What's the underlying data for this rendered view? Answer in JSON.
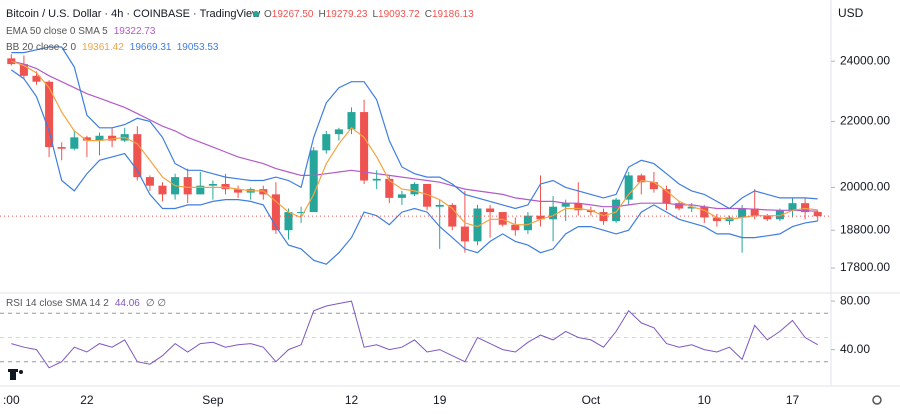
{
  "chart_data": [
    {
      "type": "candlestick",
      "title": "Bitcoin / U.S. Dollar · 4h · COINBASE · TradingView",
      "ohlc": [
        {
          "label": "O",
          "value": "19267.50"
        },
        {
          "label": "H",
          "value": "19279.23"
        },
        {
          "label": "L",
          "value": "19093.72"
        },
        {
          "label": "C",
          "value": "19186.13"
        }
      ],
      "indicator_labels": [
        {
          "text": "EMA 50 close 0 SMA 5",
          "values": [
            "19322.73"
          ],
          "colors": [
            "#b35bc8"
          ]
        },
        {
          "text": "BB 20 close 2 0",
          "values": [
            "19361.42",
            "19669.31",
            "19053.53"
          ],
          "colors": [
            "#f5a340",
            "#3f7ee0",
            "#3f7ee0"
          ]
        }
      ],
      "currency": "USD",
      "categories": [
        ":00",
        null,
        null,
        null,
        null,
        null,
        "22",
        null,
        null,
        null,
        null,
        null,
        null,
        null,
        null,
        null,
        "Sep",
        null,
        null,
        null,
        null,
        null,
        null,
        null,
        null,
        null,
        null,
        "12",
        null,
        null,
        null,
        null,
        null,
        null,
        "19",
        null,
        null,
        null,
        null,
        null,
        null,
        null,
        null,
        null,
        null,
        null,
        "Oct",
        null,
        null,
        null,
        null,
        null,
        null,
        null,
        null,
        "10",
        null,
        null,
        null,
        null,
        null,
        null,
        "17",
        null,
        null
      ],
      "open": [
        24100,
        23900,
        23500,
        23300,
        21200,
        21150,
        21500,
        21400,
        21550,
        21400,
        21600,
        20300,
        20050,
        19800,
        20300,
        19800,
        20050,
        20100,
        19950,
        19850,
        19950,
        19800,
        18800,
        19300,
        19300,
        21100,
        21600,
        21750,
        22300,
        20200,
        20250,
        19700,
        19800,
        20100,
        19450,
        19500,
        18900,
        18500,
        19400,
        19300,
        18950,
        18800,
        19200,
        19100,
        19450,
        19550,
        19350,
        19300,
        19050,
        19650,
        20350,
        20150,
        19950,
        19550,
        19400,
        19450,
        19150,
        19050,
        19150,
        19400,
        19200,
        19100,
        19350,
        19550,
        19300
      ],
      "high": [
        24250,
        24200,
        23650,
        23350,
        21350,
        21700,
        21550,
        21650,
        21800,
        21800,
        21850,
        20350,
        20150,
        20400,
        20550,
        20450,
        20200,
        20400,
        20050,
        20000,
        20050,
        20150,
        19400,
        19450,
        21200,
        21700,
        21800,
        22450,
        22700,
        20500,
        20350,
        19900,
        20150,
        20100,
        19650,
        19550,
        19900,
        19500,
        19500,
        19300,
        19150,
        19300,
        20350,
        19750,
        19650,
        20150,
        19450,
        19400,
        19700,
        20450,
        20400,
        20450,
        20050,
        19600,
        19550,
        19500,
        19250,
        19200,
        19500,
        19950,
        19250,
        19400,
        19700,
        19700,
        19350
      ],
      "low": [
        23850,
        23400,
        23200,
        20900,
        20800,
        21100,
        20900,
        20950,
        21200,
        21350,
        20200,
        19900,
        19600,
        19650,
        19550,
        19800,
        19650,
        19800,
        19700,
        19650,
        19650,
        18700,
        18550,
        19000,
        19300,
        21000,
        21400,
        21600,
        20100,
        19950,
        19550,
        19500,
        19750,
        19350,
        18300,
        18800,
        18200,
        18400,
        18600,
        18900,
        18650,
        18700,
        18900,
        18500,
        19050,
        19200,
        19200,
        18950,
        19000,
        19500,
        19800,
        19850,
        19350,
        19350,
        19300,
        19000,
        18900,
        18950,
        18200,
        19100,
        19050,
        19050,
        19150,
        19100,
        19050
      ],
      "close": [
        23900,
        23500,
        23300,
        21200,
        21150,
        21500,
        21400,
        21550,
        21400,
        21600,
        20300,
        20050,
        19800,
        20300,
        19800,
        20050,
        20100,
        19950,
        19850,
        19950,
        19800,
        18800,
        19300,
        19300,
        21100,
        21600,
        21750,
        22300,
        20200,
        20250,
        19700,
        19800,
        20100,
        19450,
        19500,
        18900,
        18500,
        19400,
        19300,
        18950,
        18800,
        19200,
        19100,
        19450,
        19550,
        19350,
        19300,
        19050,
        19650,
        20350,
        20150,
        19950,
        19550,
        19400,
        19450,
        19150,
        19050,
        19150,
        19400,
        19200,
        19100,
        19350,
        19550,
        19300,
        19186.13
      ],
      "up_color": "#26a69a",
      "down_color": "#ef5350",
      "series": [
        {
          "name": "EMA 50",
          "color": "#b35bc8",
          "values": [
            24000,
            23900,
            23750,
            23500,
            23300,
            23100,
            22900,
            22750,
            22600,
            22450,
            22250,
            22050,
            21850,
            21700,
            21500,
            21350,
            21200,
            21050,
            20900,
            20800,
            20700,
            20550,
            20450,
            20350,
            20350,
            20400,
            20450,
            20500,
            20450,
            20400,
            20350,
            20300,
            20250,
            20200,
            20150,
            20050,
            19950,
            19900,
            19850,
            19800,
            19700,
            19650,
            19600,
            19600,
            19550,
            19550,
            19500,
            19450,
            19450,
            19500,
            19550,
            19550,
            19550,
            19500,
            19500,
            19450,
            19400,
            19400,
            19400,
            19380,
            19360,
            19350,
            19350,
            19340,
            19322.73
          ]
        },
        {
          "name": "BB basis",
          "color": "#f5a340",
          "values": [
            24000,
            23850,
            23600,
            23100,
            22300,
            21700,
            21400,
            21400,
            21450,
            21500,
            21300,
            20800,
            20300,
            20050,
            20000,
            20000,
            20000,
            20000,
            19950,
            19900,
            19900,
            19600,
            19300,
            19150,
            19800,
            20700,
            21300,
            21800,
            21500,
            20900,
            20200,
            19950,
            19900,
            19800,
            19650,
            19400,
            19000,
            18900,
            19100,
            19100,
            18950,
            18950,
            19100,
            19200,
            19400,
            19400,
            19350,
            19200,
            19300,
            19800,
            20200,
            20150,
            19900,
            19600,
            19450,
            19350,
            19150,
            19100,
            19150,
            19200,
            19200,
            19200,
            19350,
            19400,
            19361.42
          ]
        },
        {
          "name": "BB upper",
          "color": "#3f7ee0",
          "values": [
            24300,
            24300,
            24400,
            24500,
            24500,
            23800,
            22200,
            21800,
            21800,
            21900,
            22100,
            22000,
            21500,
            20700,
            20500,
            20500,
            20400,
            20300,
            20250,
            20200,
            20200,
            20300,
            20200,
            20000,
            21500,
            22600,
            23100,
            23300,
            23300,
            22700,
            21400,
            20600,
            20400,
            20300,
            20300,
            20100,
            19800,
            19700,
            19600,
            19500,
            19400,
            19500,
            20100,
            20200,
            20000,
            19900,
            19800,
            19700,
            19800,
            20600,
            20800,
            20700,
            20400,
            20100,
            19900,
            19800,
            19600,
            19400,
            19700,
            19900,
            19800,
            19700,
            19700,
            19700,
            19669.31
          ]
        },
        {
          "name": "BB lower",
          "color": "#3f7ee0",
          "values": [
            23700,
            23400,
            22800,
            21700,
            20200,
            19900,
            20400,
            20800,
            20900,
            21000,
            20500,
            19800,
            19400,
            19400,
            19500,
            19500,
            19600,
            19650,
            19650,
            19600,
            19500,
            18900,
            18400,
            18300,
            18000,
            17900,
            18200,
            18600,
            19300,
            19200,
            18950,
            19300,
            19400,
            19300,
            18900,
            18600,
            18300,
            18200,
            18500,
            18700,
            18500,
            18400,
            18200,
            18300,
            18700,
            18900,
            18900,
            18800,
            18700,
            18800,
            19300,
            19500,
            19300,
            19100,
            19000,
            18900,
            18700,
            18700,
            18600,
            18600,
            18650,
            18700,
            18900,
            19000,
            19053.53
          ]
        }
      ],
      "log_scale": true,
      "ylim": [
        17170,
        26220
      ],
      "yticks": [
        {
          "value": 17800,
          "label": "17800.00"
        },
        {
          "value": 18800,
          "label": "18800.00"
        },
        {
          "value": 20000,
          "label": "20000.00"
        },
        {
          "value": 22000,
          "label": "22000.00"
        },
        {
          "value": 24000,
          "label": "24000.00"
        }
      ],
      "grid": false
    },
    {
      "type": "line",
      "indicator_label": "RSI 14 close SMA 14 2",
      "value_label": "44.06",
      "na_label": "∅ ∅",
      "series": [
        {
          "name": "RSI",
          "color": "#7e57c2",
          "values": [
            45,
            42,
            40,
            25,
            30,
            42,
            38,
            45,
            42,
            48,
            30,
            28,
            35,
            45,
            38,
            45,
            46,
            42,
            44,
            45,
            42,
            30,
            40,
            44,
            72,
            76,
            78,
            80,
            42,
            44,
            40,
            42,
            48,
            38,
            40,
            35,
            30,
            50,
            45,
            40,
            38,
            46,
            52,
            48,
            55,
            50,
            48,
            42,
            55,
            72,
            62,
            58,
            45,
            42,
            44,
            40,
            38,
            42,
            32,
            60,
            48,
            55,
            64,
            50,
            44.06
          ]
        }
      ],
      "bands": [
        30,
        50,
        70
      ],
      "ylim": [
        10,
        86.7
      ],
      "yticks": [
        {
          "value": 40,
          "label": "40.00"
        },
        {
          "value": 80,
          "label": "80.00"
        }
      ],
      "grid": false
    }
  ]
}
